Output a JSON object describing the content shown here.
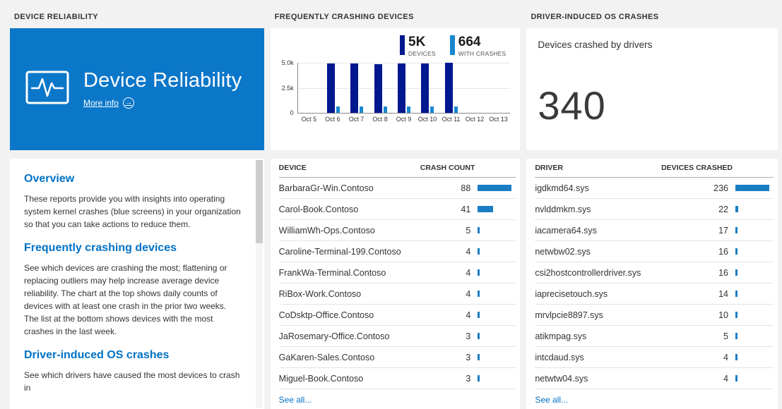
{
  "colors": {
    "accent": "#0072c6",
    "tile_blue": "#0b77c9",
    "bar_dark": "#00188f",
    "bar_light": "#1787cf",
    "table_bar": "#1a7dc4"
  },
  "reliability": {
    "header": "DEVICE RELIABILITY",
    "tile": {
      "title": "Device Reliability",
      "more_info": "More info"
    },
    "sections": [
      {
        "heading": "Overview",
        "body": "These reports provide you with insights into operating system kernel crashes (blue screens) in your organization so that you can take actions to reduce them."
      },
      {
        "heading": "Frequently crashing devices",
        "body": "See which devices are crashing the most; flattening or replacing outliers may help increase average device reliability. The chart at the top shows daily counts of devices with at least one crash in the prior two weeks. The list at the bottom shows devices with the most crashes in the last week."
      },
      {
        "heading": "Driver-induced OS crashes",
        "body": "See which drivers have caused the most devices to crash in"
      }
    ]
  },
  "devices": {
    "header": "FREQUENTLY CRASHING DEVICES",
    "legend": [
      {
        "value": "5K",
        "label": "DEVICES"
      },
      {
        "value": "664",
        "label": "WITH CRASHES"
      }
    ],
    "table": {
      "name_header": "DEVICE",
      "value_header": "CRASH COUNT",
      "rows": [
        {
          "name": "BarbaraGr-Win.Contoso",
          "value": 88
        },
        {
          "name": "Carol-Book.Contoso",
          "value": 41
        },
        {
          "name": "WilliamWh-Ops.Contoso",
          "value": 5
        },
        {
          "name": "Caroline-Terminal-199.Contoso",
          "value": 4
        },
        {
          "name": "FrankWa-Terminal.Contoso",
          "value": 4
        },
        {
          "name": "RiBox-Work.Contoso",
          "value": 4
        },
        {
          "name": "CoDsktp-Office.Contoso",
          "value": 4
        },
        {
          "name": "JaRosemary-Office.Contoso",
          "value": 3
        },
        {
          "name": "GaKaren-Sales.Contoso",
          "value": 3
        },
        {
          "name": "Miguel-Book.Contoso",
          "value": 3
        }
      ],
      "see_all": "See all..."
    }
  },
  "drivers": {
    "header": "DRIVER-INDUCED OS CRASHES",
    "summary": {
      "label": "Devices crashed by drivers",
      "value": "340"
    },
    "table": {
      "name_header": "DRIVER",
      "value_header": "DEVICES CRASHED",
      "rows": [
        {
          "name": "igdkmd64.sys",
          "value": 236
        },
        {
          "name": "nvlddmkm.sys",
          "value": 22
        },
        {
          "name": "iacamera64.sys",
          "value": 17
        },
        {
          "name": "netwbw02.sys",
          "value": 16
        },
        {
          "name": "csi2hostcontrollerdriver.sys",
          "value": 16
        },
        {
          "name": "iaprecisetouch.sys",
          "value": 14
        },
        {
          "name": "mrvlpcie8897.sys",
          "value": 10
        },
        {
          "name": "atikmpag.sys",
          "value": 5
        },
        {
          "name": "intcdaud.sys",
          "value": 4
        },
        {
          "name": "netwtw04.sys",
          "value": 4
        }
      ],
      "see_all": "See all..."
    }
  },
  "chart_data": {
    "type": "bar",
    "title": "Daily counts of devices with at least one crash",
    "categories": [
      "Oct 5",
      "Oct 6",
      "Oct 7",
      "Oct 8",
      "Oct 9",
      "Oct 10",
      "Oct 11",
      "Oct 12",
      "Oct 13"
    ],
    "series": [
      {
        "name": "DEVICES",
        "color": "#00188f",
        "values": [
          0,
          4900,
          4950,
          4850,
          4900,
          4950,
          5000,
          0,
          0
        ]
      },
      {
        "name": "WITH CRASHES",
        "color": "#1787cf",
        "values": [
          0,
          650,
          660,
          620,
          600,
          640,
          664,
          0,
          0
        ]
      }
    ],
    "xlabel": "",
    "ylabel": "",
    "ylim": [
      0,
      5000
    ],
    "yticks": [
      "5.0k",
      "2.5k",
      "0"
    ],
    "grid": true,
    "legend_position": "top-right"
  }
}
